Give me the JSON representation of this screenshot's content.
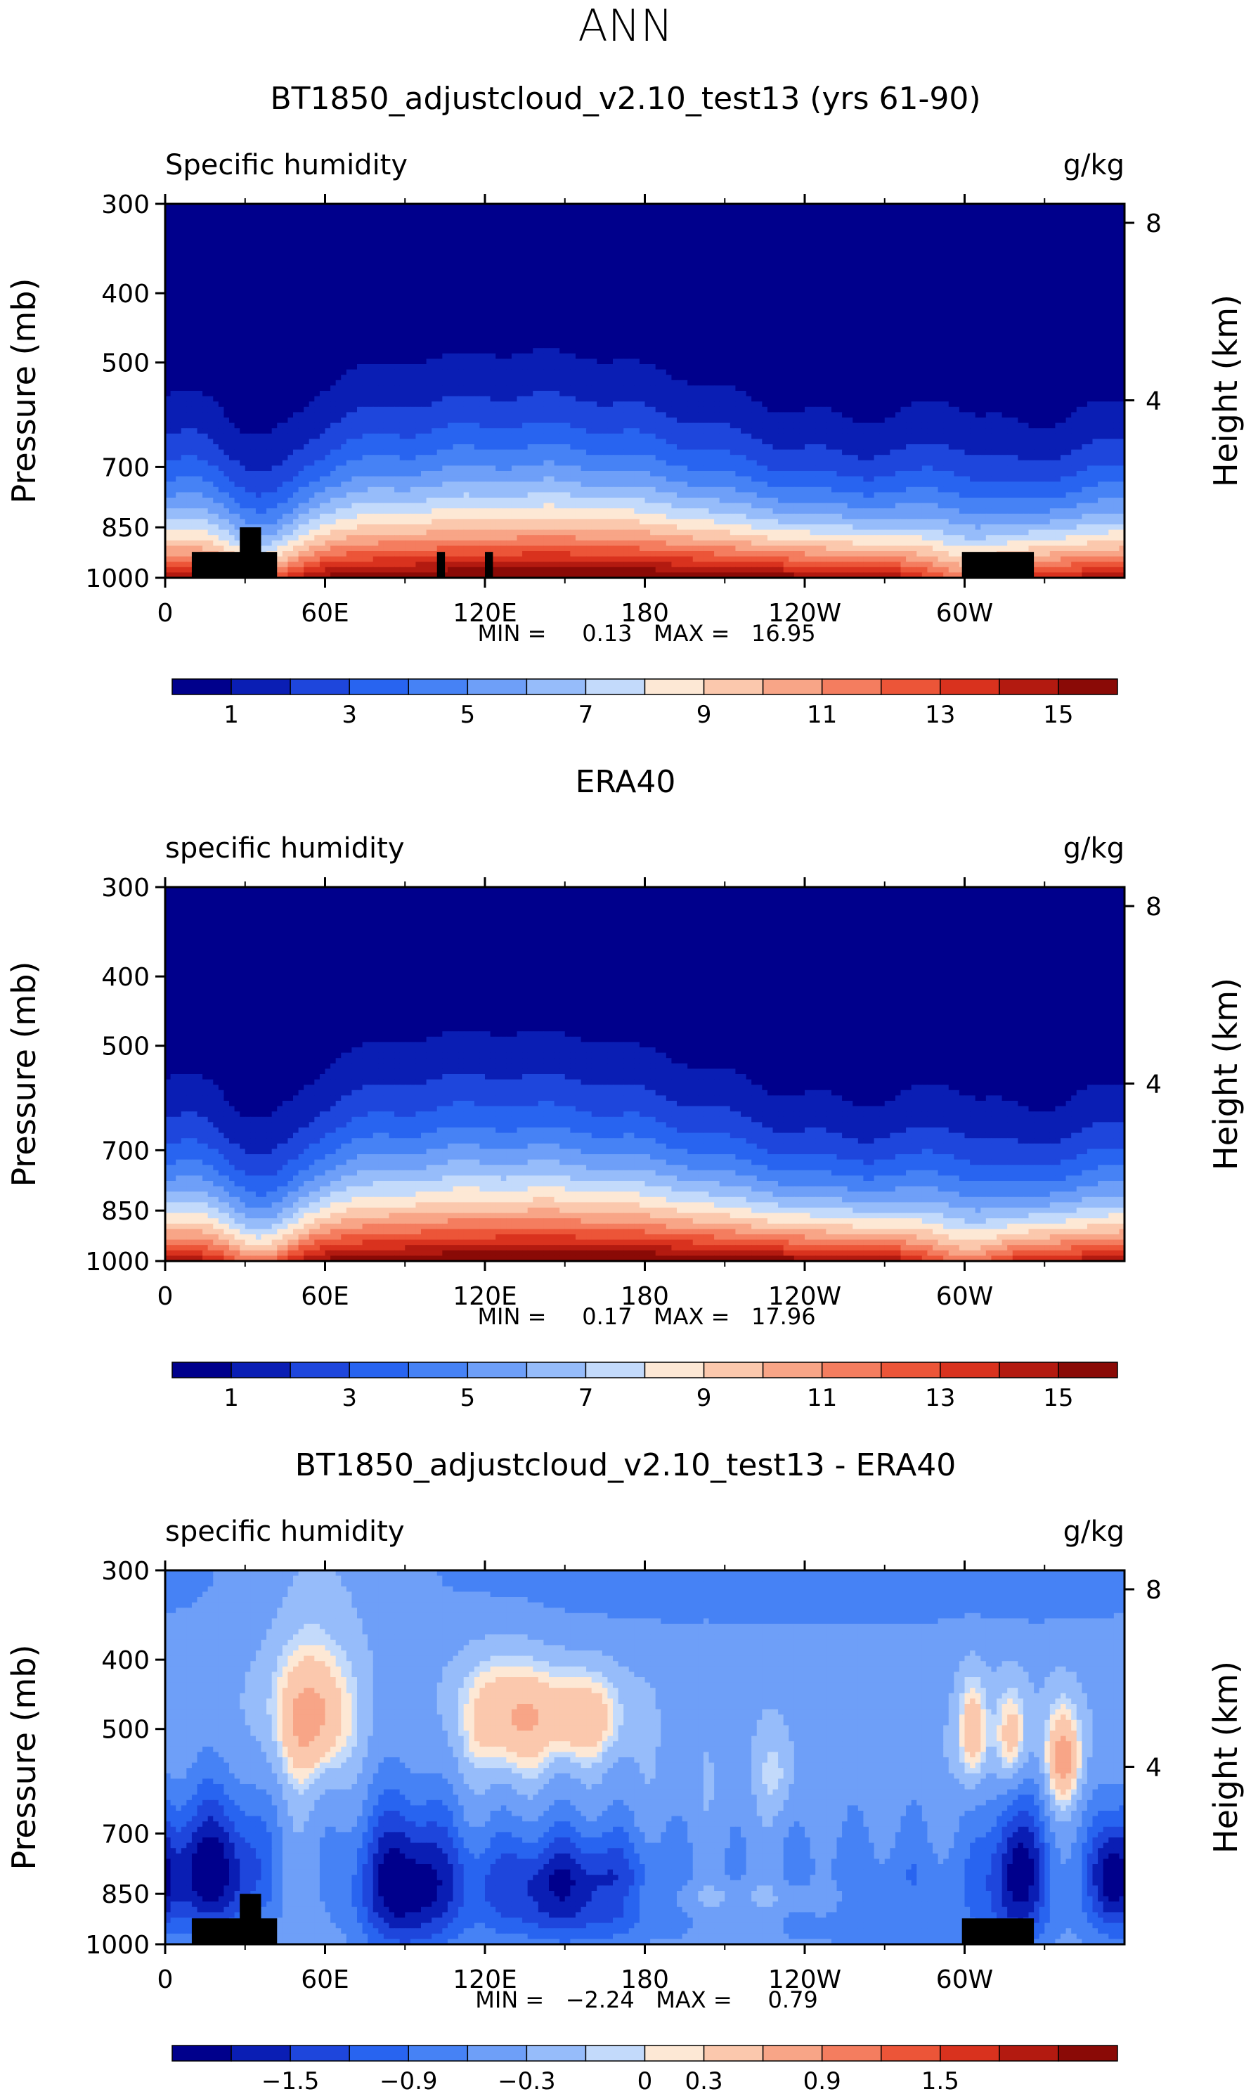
{
  "figure_title": "ANN",
  "colors": {
    "abs_palette": [
      "#00008c",
      "#0a1eb4",
      "#1e46dc",
      "#2864f0",
      "#4682f5",
      "#6e9ff8",
      "#96bcfa",
      "#c3dafb",
      "#fde8d5",
      "#fbc8ad",
      "#f8a587",
      "#f47d5f",
      "#ec5538",
      "#d9321e",
      "#b31a10",
      "#8a0a06"
    ],
    "diff_palette": [
      "#00008c",
      "#0a1eb4",
      "#1e46dc",
      "#2864f0",
      "#4682f5",
      "#6e9ff8",
      "#96bcfa",
      "#c3dafb",
      "#fde8d5",
      "#fbc8ad",
      "#f8a587",
      "#f47d5f",
      "#ec5538",
      "#d9321e",
      "#b31a10",
      "#8a0a06"
    ]
  },
  "chart_data": [
    {
      "type": "heatmap",
      "title": "BT1850_adjustcloud_v2.10_test13 (yrs 61-90)",
      "subtitle_left": "Specific humidity",
      "units": "g/kg",
      "ylabel": "Pressure (mb)",
      "ylabel_right": "Height (km)",
      "x_ticks": [
        "0",
        "60E",
        "120E",
        "180",
        "120W",
        "60W"
      ],
      "x_tick_values": [
        0,
        60,
        120,
        180,
        240,
        300
      ],
      "xlim": [
        0,
        360
      ],
      "y_ticks": [
        "300",
        "400",
        "500",
        "700",
        "850",
        "1000"
      ],
      "y_tick_values": [
        300,
        400,
        500,
        700,
        850,
        1000
      ],
      "ylim": [
        300,
        1000
      ],
      "right_ticks": [
        "8",
        "4"
      ],
      "right_tick_values": [
        8,
        4
      ],
      "min_max_text": "MIN =     0.13   MAX =   16.95",
      "colorbar_labels": [
        "1",
        "3",
        "5",
        "7",
        "9",
        "11",
        "13",
        "15"
      ],
      "colorbar_levels": [
        0.5,
        1,
        2,
        3,
        4,
        5,
        6,
        7,
        8,
        9,
        10,
        11,
        12,
        13,
        14,
        15,
        16
      ],
      "kind": "model"
    },
    {
      "type": "heatmap",
      "title": "ERA40",
      "subtitle_left": "specific humidity",
      "units": "g/kg",
      "ylabel": "Pressure (mb)",
      "ylabel_right": "Height (km)",
      "x_ticks": [
        "0",
        "60E",
        "120E",
        "180",
        "120W",
        "60W"
      ],
      "x_tick_values": [
        0,
        60,
        120,
        180,
        240,
        300
      ],
      "xlim": [
        0,
        360
      ],
      "y_ticks": [
        "300",
        "400",
        "500",
        "700",
        "850",
        "1000"
      ],
      "y_tick_values": [
        300,
        400,
        500,
        700,
        850,
        1000
      ],
      "ylim": [
        300,
        1000
      ],
      "right_ticks": [
        "8",
        "4"
      ],
      "right_tick_values": [
        8,
        4
      ],
      "min_max_text": "MIN =     0.17   MAX =   17.96",
      "colorbar_labels": [
        "1",
        "3",
        "5",
        "7",
        "9",
        "11",
        "13",
        "15"
      ],
      "colorbar_levels": [
        0.5,
        1,
        2,
        3,
        4,
        5,
        6,
        7,
        8,
        9,
        10,
        11,
        12,
        13,
        14,
        15,
        16
      ],
      "kind": "obs"
    },
    {
      "type": "heatmap",
      "title": "BT1850_adjustcloud_v2.10_test13 - ERA40",
      "subtitle_left": "specific humidity",
      "units": "g/kg",
      "ylabel": "Pressure (mb)",
      "ylabel_right": "Height (km)",
      "x_ticks": [
        "0",
        "60E",
        "120E",
        "180",
        "120W",
        "60W"
      ],
      "x_tick_values": [
        0,
        60,
        120,
        180,
        240,
        300
      ],
      "xlim": [
        0,
        360
      ],
      "y_ticks": [
        "300",
        "400",
        "500",
        "700",
        "850",
        "1000"
      ],
      "y_tick_values": [
        300,
        400,
        500,
        700,
        850,
        1000
      ],
      "ylim": [
        300,
        1000
      ],
      "right_ticks": [
        "8",
        "4"
      ],
      "right_tick_values": [
        8,
        4
      ],
      "min_max_text": "MIN =   −2.24   MAX =     0.79",
      "colorbar_labels": [
        "−1.5",
        "−0.9",
        "−0.3",
        "0",
        "0.3",
        "0.9",
        "1.5"
      ],
      "colorbar_levels": [
        -2.1,
        -1.8,
        -1.5,
        -1.2,
        -0.9,
        -0.6,
        -0.3,
        -0.1,
        0,
        0.1,
        0.3,
        0.6,
        0.9,
        1.2,
        1.5,
        1.8,
        2.1
      ],
      "colorbar_label_at": [
        2,
        4,
        6,
        8,
        9,
        11,
        13
      ],
      "kind": "diff"
    }
  ]
}
